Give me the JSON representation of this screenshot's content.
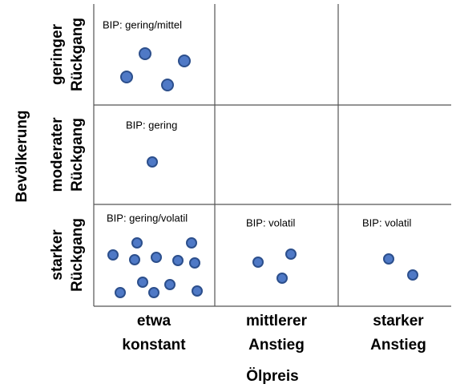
{
  "y_axis_label": "Bevölkerung",
  "x_axis_label": "Ölpreis",
  "rows": [
    [
      "geringer",
      "Rückgang"
    ],
    [
      "moderater",
      "Rückgang"
    ],
    [
      "starker",
      "Rückgang"
    ]
  ],
  "columns": [
    [
      "etwa",
      "konstant"
    ],
    [
      "mittlerer",
      "Anstieg"
    ],
    [
      "starker",
      "Anstieg"
    ]
  ],
  "cell_labels": [
    "BIP: gering/mittel",
    "BIP: gering",
    "BIP: gering/volatil",
    "BIP: volatil",
    "BIP: volatil"
  ]
}
